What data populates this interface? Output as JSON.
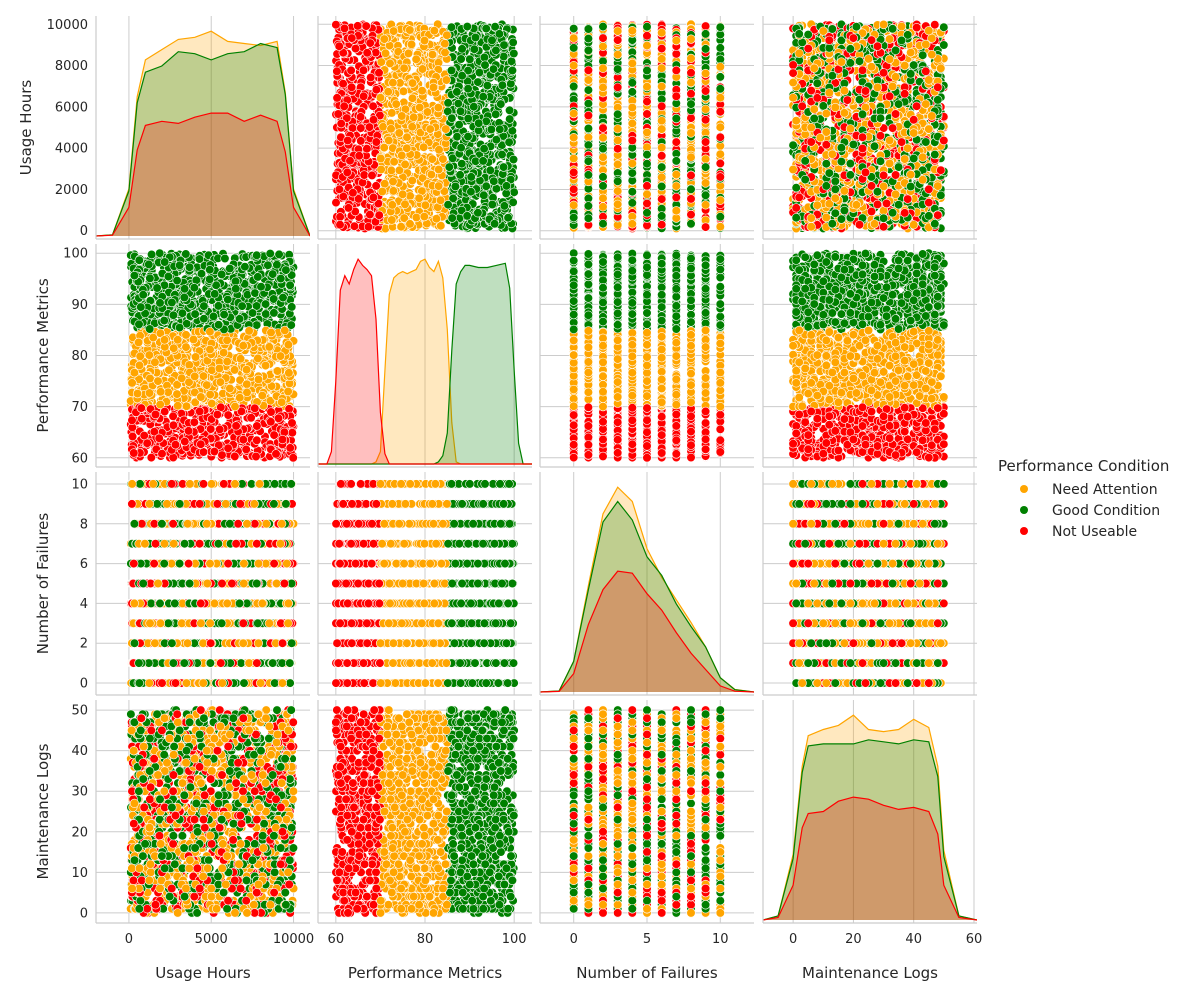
{
  "chart_data": {
    "type": "scatter",
    "kind": "pairplot",
    "variables": [
      "Usage Hours",
      "Performance Metrics",
      "Number of Failures",
      "Maintenance Logs"
    ],
    "axes": {
      "Usage Hours": {
        "range": [
          -2000,
          11000
        ],
        "ticks": [
          0,
          5000,
          10000
        ],
        "ytick_range": [
          -400,
          10400
        ],
        "yticks": [
          0,
          2000,
          4000,
          6000,
          8000,
          10000
        ]
      },
      "Performance Metrics": {
        "range": [
          56,
          104
        ],
        "ticks": [
          60,
          80,
          100
        ],
        "ytick_range": [
          58.2,
          101.8
        ],
        "yticks": [
          60,
          70,
          80,
          90,
          100
        ]
      },
      "Number of Failures": {
        "range": [
          -2.3,
          12.3
        ],
        "ticks": [
          0,
          5,
          10
        ],
        "ytick_range": [
          -0.6,
          10.6
        ],
        "yticks": [
          0,
          2,
          4,
          6,
          8,
          10
        ]
      },
      "Maintenance Logs": {
        "range": [
          -10,
          61
        ],
        "ticks": [
          0,
          20,
          40,
          60
        ],
        "ytick_range": [
          -2.5,
          52.5
        ],
        "yticks": [
          0,
          10,
          20,
          30,
          40,
          50
        ]
      }
    },
    "hue": "Performance Condition",
    "legend": {
      "title": "Performance Condition",
      "placement": "right",
      "entries": [
        "Need Attention",
        "Good Condition",
        "Not Useable"
      ]
    },
    "series": [
      {
        "name": "Need Attention",
        "color": "#ffa500",
        "performance_range": [
          70,
          85
        ]
      },
      {
        "name": "Good Condition",
        "color": "#008000",
        "performance_range": [
          85,
          100
        ]
      },
      {
        "name": "Not Useable",
        "color": "#ff0000",
        "performance_range": [
          60,
          70
        ]
      }
    ],
    "diagonal_kde": {
      "Usage Hours": {
        "x": [
          -2000,
          -1000,
          0,
          500,
          1000,
          2000,
          3000,
          4000,
          5000,
          6000,
          7000,
          8000,
          9000,
          9500,
          10000,
          11000
        ],
        "Need Attention": [
          0,
          60,
          2300,
          6800,
          8600,
          9100,
          9600,
          9700,
          10000,
          9500,
          9400,
          9300,
          9500,
          7000,
          2300,
          0
        ],
        "Good Condition": [
          0,
          60,
          2200,
          6500,
          8000,
          8300,
          9000,
          8900,
          8600,
          8900,
          9000,
          9400,
          9200,
          6900,
          2200,
          0
        ],
        "Not Useable": [
          0,
          40,
          1400,
          4200,
          5400,
          5600,
          5500,
          5800,
          6000,
          6000,
          5600,
          5900,
          5600,
          4100,
          1400,
          0
        ]
      },
      "Performance Metrics": {
        "x": [
          56,
          58,
          59,
          60,
          61,
          62,
          63,
          64,
          65,
          66,
          67,
          68,
          69,
          70,
          71,
          72,
          73,
          74,
          75,
          76,
          77,
          78,
          79,
          80,
          81,
          82,
          83,
          84,
          85,
          86,
          87,
          88,
          89,
          90,
          92,
          94,
          96,
          98,
          99,
          100,
          101,
          102,
          104
        ],
        "Need Attention": [
          0,
          0,
          0,
          0,
          0,
          0,
          0,
          0,
          0,
          0,
          0,
          0,
          100,
          600,
          4500,
          8200,
          9000,
          9200,
          9300,
          9200,
          9300,
          9400,
          9800,
          9900,
          9500,
          9300,
          9800,
          9000,
          6500,
          2000,
          100,
          0,
          0,
          0,
          0,
          0,
          0,
          0,
          0,
          0,
          0,
          0,
          0
        ],
        "Good Condition": [
          0,
          0,
          0,
          0,
          0,
          0,
          0,
          0,
          0,
          0,
          0,
          0,
          0,
          0,
          0,
          0,
          0,
          0,
          0,
          0,
          0,
          0,
          0,
          0,
          0,
          0,
          100,
          400,
          1500,
          5500,
          8700,
          9300,
          9600,
          9600,
          9500,
          9500,
          9600,
          9700,
          8500,
          4500,
          1000,
          0,
          0
        ],
        "Not Useable": [
          0,
          0,
          600,
          4000,
          8400,
          9100,
          8700,
          9400,
          9900,
          9600,
          9400,
          9100,
          7000,
          2500,
          500,
          0,
          0,
          0,
          0,
          0,
          0,
          0,
          0,
          0,
          0,
          0,
          0,
          0,
          0,
          0,
          0,
          0,
          0,
          0,
          0,
          0,
          0,
          0,
          0,
          0,
          0,
          0,
          0
        ]
      },
      "Number of Failures": {
        "x": [
          -2.3,
          -1,
          0,
          1,
          2,
          3,
          4,
          5,
          6,
          7,
          8,
          9,
          10,
          11,
          12.3
        ],
        "Need Attention": [
          0,
          50,
          1500,
          5200,
          8700,
          10000,
          9300,
          7000,
          5600,
          4500,
          3400,
          2200,
          700,
          120,
          0
        ],
        "Good Condition": [
          0,
          50,
          1500,
          5000,
          8300,
          9300,
          8400,
          6600,
          5700,
          4300,
          3200,
          2200,
          700,
          110,
          0
        ],
        "Not Useable": [
          0,
          30,
          900,
          3300,
          5000,
          5900,
          5800,
          4800,
          4000,
          2900,
          1900,
          1100,
          300,
          40,
          0
        ]
      },
      "Maintenance Logs": {
        "x": [
          -10,
          -5,
          0,
          3,
          5,
          10,
          15,
          20,
          25,
          30,
          35,
          40,
          45,
          48,
          50,
          55,
          61
        ],
        "Need Attention": [
          0,
          200,
          3200,
          7500,
          9000,
          9300,
          9500,
          10000,
          9300,
          9200,
          9300,
          9800,
          9400,
          7500,
          3400,
          200,
          0
        ],
        "Good Condition": [
          0,
          200,
          3000,
          7200,
          8500,
          8600,
          8600,
          8600,
          8800,
          8700,
          8600,
          8800,
          8700,
          7000,
          3100,
          200,
          0
        ],
        "Not Useable": [
          0,
          120,
          1700,
          4500,
          5200,
          5300,
          5800,
          6000,
          5900,
          5600,
          5400,
          5500,
          5300,
          4200,
          1700,
          120,
          0
        ]
      }
    },
    "grid": true
  }
}
